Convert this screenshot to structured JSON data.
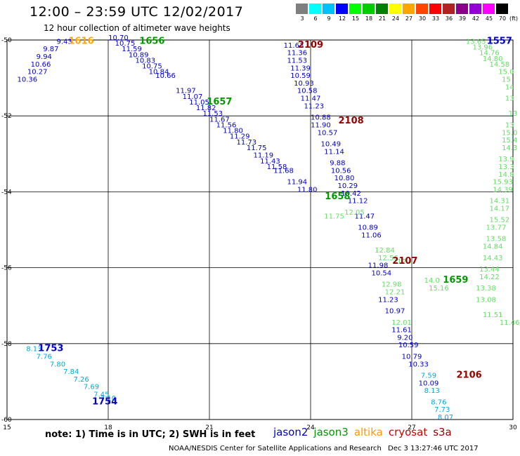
{
  "title": "12:00 – 23:59 UTC 12/02/2017",
  "subtitle": "12 hour collection of altimeter wave heights",
  "color_scale": {
    "unit": "(ft)",
    "labels": [
      "3",
      "6",
      "9",
      "12",
      "15",
      "18",
      "21",
      "24",
      "27",
      "30",
      "33",
      "36",
      "39",
      "42",
      "45",
      "70"
    ],
    "colors": [
      "#7f7f7f",
      "#00ffff",
      "#00bfff",
      "#0000ff",
      "#00ff00",
      "#00cc00",
      "#008000",
      "#ffff00",
      "#ffa500",
      "#ff4500",
      "#ff0000",
      "#b22222",
      "#8b008b",
      "#9400d3",
      "#ff00ff",
      "#000000"
    ]
  },
  "axes": {
    "lon_labels": [
      "15",
      "18",
      "21",
      "24",
      "27",
      "30"
    ],
    "lat_labels": [
      "-50",
      "-52",
      "-54",
      "-56",
      "-58",
      "-60"
    ]
  },
  "note": "note: 1) Time is in UTC; 2) SWH is in feet",
  "satellites": [
    {
      "name": "jason2",
      "color": "#0000cc"
    },
    {
      "name": "jason3",
      "color": "#009900"
    },
    {
      "name": "altika",
      "color": "#ff9900"
    },
    {
      "name": "cryosat",
      "color": "#cc0000"
    },
    {
      "name": "s3a",
      "color": "#990000"
    }
  ],
  "credit": "NOAA/NESDIS Center for Satellite Applications and Research",
  "timestamp": "Dec  3 13:27:46 UTC 2017",
  "track_colors": {
    "jason2": "#0000cc",
    "jason3_dark": "#009900",
    "jason3_light": "#66dd66",
    "altika": "#ffa500",
    "sat_label": "#990000",
    "cyan": "#00aadd"
  },
  "time_labels": [
    {
      "text": "1616",
      "lon": 17.2,
      "lat": -50.1,
      "sat": "altika"
    },
    {
      "text": "1656",
      "lon": 19.3,
      "lat": -50.1,
      "sat": "jason3_dark"
    },
    {
      "text": "2109",
      "lon": 24.0,
      "lat": -50.2,
      "sat": "sat_label"
    },
    {
      "text": "1557",
      "lon": 29.6,
      "lat": -50.1,
      "sat": "jason2"
    },
    {
      "text": "1657",
      "lon": 21.3,
      "lat": -51.7,
      "sat": "jason3_dark"
    },
    {
      "text": "2108",
      "lon": 25.2,
      "lat": -52.2,
      "sat": "sat_label"
    },
    {
      "text": "1658",
      "lon": 24.8,
      "lat": -54.2,
      "sat": "jason3_dark"
    },
    {
      "text": "2107",
      "lon": 26.8,
      "lat": -55.9,
      "sat": "sat_label"
    },
    {
      "text": "1659",
      "lon": 28.3,
      "lat": -56.4,
      "sat": "jason3_dark"
    },
    {
      "text": "2106",
      "lon": 28.7,
      "lat": -58.9,
      "sat": "sat_label"
    },
    {
      "text": "1753",
      "lon": 16.3,
      "lat": -58.2,
      "sat": "jason2"
    },
    {
      "text": "1754",
      "lon": 17.9,
      "lat": -59.6,
      "sat": "jason2"
    }
  ],
  "tracks": [
    {
      "name": "jason2 track west",
      "sat": "jason2",
      "points": [
        {
          "lon": 16.7,
          "lat": -50.1,
          "v": "9.43"
        },
        {
          "lon": 16.3,
          "lat": -50.3,
          "v": "9.87"
        },
        {
          "lon": 16.1,
          "lat": -50.5,
          "v": "9.94"
        },
        {
          "lon": 16.0,
          "lat": -50.7,
          "v": "10.66"
        },
        {
          "lon": 15.9,
          "lat": -50.9,
          "v": "10.27"
        },
        {
          "lon": 15.6,
          "lat": -51.1,
          "v": "10.36"
        }
      ]
    },
    {
      "name": "cyan track",
      "sat": "cyan",
      "points": [
        {
          "lon": 15.8,
          "lat": -58.2,
          "v": "8.13"
        },
        {
          "lon": 16.1,
          "lat": -58.4,
          "v": "7.76"
        },
        {
          "lon": 16.5,
          "lat": -58.6,
          "v": "7.80"
        },
        {
          "lon": 16.9,
          "lat": -58.8,
          "v": "7.84"
        },
        {
          "lon": 17.2,
          "lat": -59.0,
          "v": "7.26"
        },
        {
          "lon": 17.5,
          "lat": -59.2,
          "v": "7.69"
        },
        {
          "lon": 17.8,
          "lat": -59.4,
          "v": "7.45"
        },
        {
          "lon": 18.0,
          "lat": -59.5,
          "v": "7.10"
        }
      ]
    },
    {
      "name": "jason2 track diagonal",
      "sat": "jason2",
      "points": [
        {
          "lon": 18.3,
          "lat": -50.0,
          "v": "10.70"
        },
        {
          "lon": 18.5,
          "lat": -50.15,
          "v": "10.75"
        },
        {
          "lon": 18.7,
          "lat": -50.3,
          "v": "11.59"
        },
        {
          "lon": 18.9,
          "lat": -50.45,
          "v": "10.89"
        },
        {
          "lon": 19.1,
          "lat": -50.6,
          "v": "10.83"
        },
        {
          "lon": 19.3,
          "lat": -50.75,
          "v": "10.75"
        },
        {
          "lon": 19.5,
          "lat": -50.9,
          "v": "10.84"
        },
        {
          "lon": 19.7,
          "lat": -51.0,
          "v": "10.66"
        },
        {
          "lon": 20.3,
          "lat": -51.4,
          "v": "11.97"
        },
        {
          "lon": 20.5,
          "lat": -51.55,
          "v": "11.07"
        },
        {
          "lon": 20.7,
          "lat": -51.7,
          "v": "11.05"
        },
        {
          "lon": 20.9,
          "lat": -51.85,
          "v": "11.82"
        },
        {
          "lon": 21.1,
          "lat": -52.0,
          "v": "11.53"
        },
        {
          "lon": 21.3,
          "lat": -52.15,
          "v": "11.67"
        },
        {
          "lon": 21.5,
          "lat": -52.3,
          "v": "11.56"
        },
        {
          "lon": 21.7,
          "lat": -52.45,
          "v": "11.80"
        },
        {
          "lon": 21.9,
          "lat": -52.6,
          "v": "11.29"
        },
        {
          "lon": 22.1,
          "lat": -52.75,
          "v": "11.73"
        },
        {
          "lon": 22.4,
          "lat": -52.9,
          "v": "11.75"
        },
        {
          "lon": 22.6,
          "lat": -53.1,
          "v": "11.19"
        },
        {
          "lon": 22.8,
          "lat": -53.25,
          "v": "11.43"
        },
        {
          "lon": 23.0,
          "lat": -53.4,
          "v": "11.58"
        },
        {
          "lon": 23.2,
          "lat": -53.5,
          "v": "11.68"
        },
        {
          "lon": 23.6,
          "lat": -53.8,
          "v": "11.94"
        },
        {
          "lon": 23.9,
          "lat": -54.0,
          "v": "11.80"
        }
      ]
    },
    {
      "name": "jason2 track central",
      "sat": "jason2",
      "points": [
        {
          "lon": 23.5,
          "lat": -50.2,
          "v": "11.63"
        },
        {
          "lon": 23.6,
          "lat": -50.4,
          "v": "11.36"
        },
        {
          "lon": 23.6,
          "lat": -50.6,
          "v": "11.53"
        },
        {
          "lon": 23.7,
          "lat": -50.8,
          "v": "11.39"
        },
        {
          "lon": 23.7,
          "lat": -51.0,
          "v": "10.59"
        },
        {
          "lon": 23.8,
          "lat": -51.2,
          "v": "10.93"
        },
        {
          "lon": 23.9,
          "lat": -51.4,
          "v": "10.58"
        },
        {
          "lon": 24.0,
          "lat": -51.6,
          "v": "11.47"
        },
        {
          "lon": 24.1,
          "lat": -51.8,
          "v": "11.23"
        },
        {
          "lon": 24.3,
          "lat": -52.1,
          "v": "10.88"
        },
        {
          "lon": 24.3,
          "lat": -52.3,
          "v": "11.90"
        },
        {
          "lon": 24.5,
          "lat": -52.5,
          "v": "10.57"
        },
        {
          "lon": 24.6,
          "lat": -52.8,
          "v": "10.49"
        },
        {
          "lon": 24.7,
          "lat": -53.0,
          "v": "11.14"
        },
        {
          "lon": 24.8,
          "lat": -53.3,
          "v": "9.88"
        },
        {
          "lon": 24.9,
          "lat": -53.5,
          "v": "10.56"
        },
        {
          "lon": 25.0,
          "lat": -53.7,
          "v": "10.80"
        },
        {
          "lon": 25.1,
          "lat": -53.9,
          "v": "10.29"
        },
        {
          "lon": 25.2,
          "lat": -54.1,
          "v": "10.42"
        },
        {
          "lon": 25.4,
          "lat": -54.3,
          "v": "11.12"
        },
        {
          "lon": 25.6,
          "lat": -54.7,
          "v": "11.47"
        },
        {
          "lon": 25.7,
          "lat": -55.0,
          "v": "10.89"
        },
        {
          "lon": 25.8,
          "lat": -55.2,
          "v": "11.06"
        },
        {
          "lon": 26.0,
          "lat": -56.0,
          "v": "11.98"
        },
        {
          "lon": 26.1,
          "lat": -56.2,
          "v": "10.54"
        },
        {
          "lon": 26.3,
          "lat": -56.9,
          "v": "11.23"
        },
        {
          "lon": 26.5,
          "lat": -57.2,
          "v": "10.97"
        },
        {
          "lon": 26.7,
          "lat": -57.7,
          "v": "11.61"
        },
        {
          "lon": 26.8,
          "lat": -57.9,
          "v": "9.20"
        },
        {
          "lon": 26.9,
          "lat": -58.1,
          "v": "10.59"
        },
        {
          "lon": 27.0,
          "lat": -58.4,
          "v": "10.79"
        },
        {
          "lon": 27.2,
          "lat": -58.6,
          "v": "10.33"
        },
        {
          "lon": 27.5,
          "lat": -59.1,
          "v": "10.09"
        }
      ]
    },
    {
      "name": "cyan track central",
      "sat": "cyan",
      "points": [
        {
          "lon": 27.5,
          "lat": -58.9,
          "v": "7.59"
        },
        {
          "lon": 27.6,
          "lat": -59.3,
          "v": "8.13"
        },
        {
          "lon": 27.8,
          "lat": -59.6,
          "v": "8.76"
        },
        {
          "lon": 27.9,
          "lat": -59.8,
          "v": "7.73"
        },
        {
          "lon": 28.0,
          "lat": -60.0,
          "v": "8.07"
        }
      ]
    },
    {
      "name": "jason3 track central",
      "sat": "jason3_light",
      "points": [
        {
          "lon": 24.7,
          "lat": -54.7,
          "v": "11.75"
        },
        {
          "lon": 25.3,
          "lat": -54.6,
          "v": "12.05"
        },
        {
          "lon": 26.2,
          "lat": -55.6,
          "v": "12.84"
        },
        {
          "lon": 26.3,
          "lat": -55.8,
          "v": "12.56"
        },
        {
          "lon": 26.4,
          "lat": -56.5,
          "v": "12.98"
        },
        {
          "lon": 26.5,
          "lat": -56.7,
          "v": "12.21"
        },
        {
          "lon": 26.7,
          "lat": -57.5,
          "v": "12.01"
        },
        {
          "lon": 26.8,
          "lat": -55.9,
          "v": "12.4"
        },
        {
          "lon": 27.6,
          "lat": -56.4,
          "v": "14.0"
        },
        {
          "lon": 27.8,
          "lat": -56.6,
          "v": "15.16"
        }
      ]
    },
    {
      "name": "jason3 track east",
      "sat": "jason3_light",
      "points": [
        {
          "lon": 28.9,
          "lat": -50.1,
          "v": "13.65"
        },
        {
          "lon": 29.1,
          "lat": -50.25,
          "v": "13.96"
        },
        {
          "lon": 29.3,
          "lat": -50.4,
          "v": "14.76"
        },
        {
          "lon": 29.4,
          "lat": -50.55,
          "v": "14.80"
        },
        {
          "lon": 29.6,
          "lat": -50.7,
          "v": "14.58"
        },
        {
          "lon": 29.8,
          "lat": -50.9,
          "v": "15.0"
        },
        {
          "lon": 29.8,
          "lat": -51.1,
          "v": "15"
        },
        {
          "lon": 29.9,
          "lat": -51.3,
          "v": "14"
        },
        {
          "lon": 29.9,
          "lat": -51.6,
          "v": "13"
        },
        {
          "lon": 30.0,
          "lat": -52.0,
          "v": "13"
        },
        {
          "lon": 29.9,
          "lat": -52.3,
          "v": "13"
        },
        {
          "lon": 29.9,
          "lat": -52.5,
          "v": "15.0"
        },
        {
          "lon": 29.9,
          "lat": -52.7,
          "v": "15.4"
        },
        {
          "lon": 29.9,
          "lat": -52.9,
          "v": "14.3"
        },
        {
          "lon": 29.8,
          "lat": -53.2,
          "v": "13.9"
        },
        {
          "lon": 29.8,
          "lat": -53.4,
          "v": "13.3"
        },
        {
          "lon": 29.8,
          "lat": -53.6,
          "v": "14.8"
        },
        {
          "lon": 29.7,
          "lat": -53.8,
          "v": "15.93"
        },
        {
          "lon": 29.7,
          "lat": -54.0,
          "v": "14.39"
        },
        {
          "lon": 29.6,
          "lat": -54.3,
          "v": "14.31"
        },
        {
          "lon": 29.6,
          "lat": -54.5,
          "v": "14.17"
        },
        {
          "lon": 29.6,
          "lat": -54.8,
          "v": "15.52"
        },
        {
          "lon": 29.5,
          "lat": -55.0,
          "v": "13.77"
        },
        {
          "lon": 29.5,
          "lat": -55.3,
          "v": "13.58"
        },
        {
          "lon": 29.4,
          "lat": -55.5,
          "v": "14.84"
        },
        {
          "lon": 29.4,
          "lat": -55.8,
          "v": "14.43"
        },
        {
          "lon": 29.3,
          "lat": -56.1,
          "v": "13.44"
        },
        {
          "lon": 29.3,
          "lat": -56.3,
          "v": "14.22"
        },
        {
          "lon": 29.2,
          "lat": -56.6,
          "v": "13.38"
        },
        {
          "lon": 29.2,
          "lat": -56.9,
          "v": "13.08"
        },
        {
          "lon": 29.4,
          "lat": -57.3,
          "v": "11.51"
        },
        {
          "lon": 29.9,
          "lat": -57.5,
          "v": "11.46"
        }
      ]
    }
  ]
}
